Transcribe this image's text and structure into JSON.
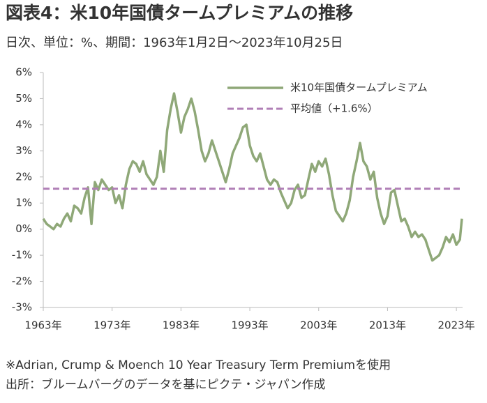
{
  "chart_data": {
    "type": "line",
    "title": "図表4：米10年国債タームプレミアムの推移",
    "subtitle": "日次、単位：%、期間：1963年1月2日～2023年10月25日",
    "notes": [
      "※Adrian, Crump & Moench 10 Year Treasury Term Premiumを使用",
      "出所：ブルームバーグのデータを基にピクテ・ジャパン作成"
    ],
    "x": [
      1963,
      1963.5,
      1964,
      1964.5,
      1965,
      1965.5,
      1966,
      1966.5,
      1967,
      1967.5,
      1968,
      1968.5,
      1969,
      1969.5,
      1970,
      1970.5,
      1971,
      1971.5,
      1972,
      1972.5,
      1973,
      1973.5,
      1974,
      1974.5,
      1975,
      1975.5,
      1976,
      1976.5,
      1977,
      1977.5,
      1978,
      1978.5,
      1979,
      1979.5,
      1980,
      1980.5,
      1981,
      1981.5,
      1982,
      1982.5,
      1983,
      1983.5,
      1984,
      1984.5,
      1985,
      1985.5,
      1986,
      1986.5,
      1987,
      1987.5,
      1988,
      1988.5,
      1989,
      1989.5,
      1990,
      1990.5,
      1991,
      1991.5,
      1992,
      1992.5,
      1993,
      1993.5,
      1994,
      1994.5,
      1995,
      1995.5,
      1996,
      1996.5,
      1997,
      1997.5,
      1998,
      1998.5,
      1999,
      1999.5,
      2000,
      2000.5,
      2001,
      2001.5,
      2002,
      2002.5,
      2003,
      2003.5,
      2004,
      2004.5,
      2005,
      2005.5,
      2006,
      2006.5,
      2007,
      2007.5,
      2008,
      2008.5,
      2009,
      2009.5,
      2010,
      2010.5,
      2011,
      2011.5,
      2012,
      2012.5,
      2013,
      2013.5,
      2014,
      2014.5,
      2015,
      2015.5,
      2016,
      2016.5,
      2017,
      2017.5,
      2018,
      2018.5,
      2019,
      2019.5,
      2020,
      2020.5,
      2021,
      2021.5,
      2022,
      2022.5,
      2023,
      2023.5,
      2023.8
    ],
    "series": [
      {
        "name": "米10年国債タームプレミアム",
        "color": "#8fa878",
        "values": [
          0.4,
          0.2,
          0.1,
          0.0,
          0.2,
          0.1,
          0.4,
          0.6,
          0.3,
          0.9,
          0.8,
          0.6,
          1.2,
          1.6,
          0.2,
          1.8,
          1.5,
          1.9,
          1.7,
          1.5,
          1.6,
          1.0,
          1.3,
          0.8,
          1.7,
          2.3,
          2.6,
          2.5,
          2.2,
          2.6,
          2.1,
          1.9,
          1.7,
          2.0,
          3.0,
          2.2,
          3.8,
          4.6,
          5.2,
          4.5,
          3.7,
          4.3,
          4.6,
          5.0,
          4.5,
          3.8,
          3.0,
          2.6,
          2.9,
          3.4,
          3.0,
          2.6,
          2.2,
          1.8,
          2.3,
          2.9,
          3.2,
          3.5,
          3.9,
          4.0,
          3.2,
          2.8,
          2.6,
          2.9,
          2.4,
          1.9,
          1.7,
          1.9,
          1.8,
          1.4,
          1.1,
          0.8,
          1.0,
          1.5,
          1.7,
          1.2,
          1.3,
          1.9,
          2.5,
          2.2,
          2.6,
          2.4,
          2.7,
          2.1,
          1.3,
          0.7,
          0.5,
          0.3,
          0.6,
          1.1,
          2.0,
          2.6,
          3.3,
          2.6,
          2.4,
          1.9,
          2.2,
          1.2,
          0.6,
          0.2,
          0.5,
          1.4,
          1.5,
          0.9,
          0.3,
          0.4,
          0.1,
          -0.3,
          -0.1,
          -0.3,
          -0.2,
          -0.4,
          -0.8,
          -1.2,
          -1.1,
          -1.0,
          -0.7,
          -0.3,
          -0.5,
          -0.2,
          -0.6,
          -0.4,
          0.4
        ]
      }
    ],
    "reference_line": {
      "name": "平均値（+1.6%）",
      "value": 1.55,
      "color": "#b07fb6"
    },
    "xlim": [
      1963,
      2023.9
    ],
    "xticks": [
      {
        "value": 1963,
        "label": "1963年"
      },
      {
        "value": 1973,
        "label": "1973年"
      },
      {
        "value": 1983,
        "label": "1983年"
      },
      {
        "value": 1993,
        "label": "1993年"
      },
      {
        "value": 2003,
        "label": "2003年"
      },
      {
        "value": 2013,
        "label": "2013年"
      },
      {
        "value": 2023,
        "label": "2023年"
      }
    ],
    "ylim": [
      -3,
      6
    ],
    "yticks": [
      {
        "value": -3,
        "label": "-3%"
      },
      {
        "value": -2,
        "label": "-2%"
      },
      {
        "value": -1,
        "label": "-1%"
      },
      {
        "value": 0,
        "label": "0%"
      },
      {
        "value": 1,
        "label": "1%"
      },
      {
        "value": 2,
        "label": "2%"
      },
      {
        "value": 3,
        "label": "3%"
      },
      {
        "value": 4,
        "label": "4%"
      },
      {
        "value": 5,
        "label": "5%"
      },
      {
        "value": 6,
        "label": "6%"
      }
    ],
    "grid": false,
    "legend": "top-right"
  }
}
